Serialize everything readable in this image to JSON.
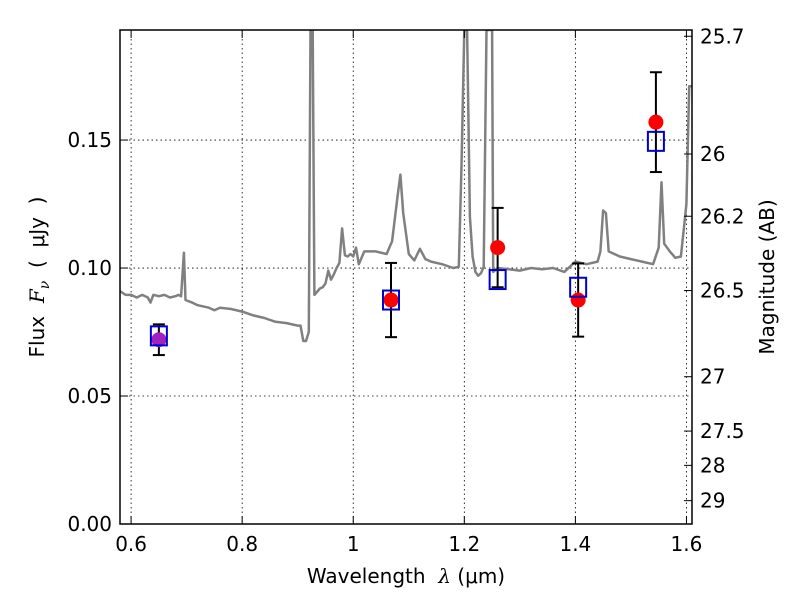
{
  "chart_data": {
    "type": "scatter",
    "xlabel": {
      "prefix": "Wavelength  ",
      "symbol": "λ",
      "unit": " (μm)"
    },
    "ylabel": {
      "prefix": "Flux  ",
      "symbol": "F",
      "subscript": "ν",
      "unit": "  (  μJy  )"
    },
    "y2label": "Magnitude (AB)",
    "xlim": [
      0.58,
      1.61
    ],
    "ylim": [
      0.0,
      0.193
    ],
    "grid": true,
    "x_ticks": [
      {
        "value": 0.6,
        "label": "0.6"
      },
      {
        "value": 0.8,
        "label": "0.8"
      },
      {
        "value": 1.0,
        "label": "1"
      },
      {
        "value": 1.2,
        "label": "1.2"
      },
      {
        "value": 1.4,
        "label": "1.4"
      },
      {
        "value": 1.6,
        "label": "1.6"
      }
    ],
    "y_ticks": [
      {
        "value": 0.0,
        "label": "0.00"
      },
      {
        "value": 0.05,
        "label": "0.05"
      },
      {
        "value": 0.1,
        "label": "0.10"
      },
      {
        "value": 0.15,
        "label": "0.15"
      }
    ],
    "mag_ticks": [
      {
        "value": 25.7,
        "label": "25.7"
      },
      {
        "value": 26.0,
        "label": "26"
      },
      {
        "value": 26.2,
        "label": "26.2"
      },
      {
        "value": 26.5,
        "label": "26.5"
      },
      {
        "value": 27.0,
        "label": "27"
      },
      {
        "value": 27.5,
        "label": "27.5"
      },
      {
        "value": 28.0,
        "label": "28"
      },
      {
        "value": 29.0,
        "label": "29"
      }
    ],
    "colors": {
      "spectrum": "#808080",
      "observed": "#ff0000",
      "model": "#0000cc",
      "errorbar": "#000000",
      "first_point": "#a020c0"
    },
    "observed": [
      {
        "x": 0.65,
        "y": 0.072,
        "err": 0.006
      },
      {
        "x": 1.068,
        "y": 0.0875,
        "err": 0.0145
      },
      {
        "x": 1.26,
        "y": 0.108,
        "err": 0.0155
      },
      {
        "x": 1.405,
        "y": 0.0875,
        "err": 0.0143
      },
      {
        "x": 1.545,
        "y": 0.157,
        "err": 0.0195
      }
    ],
    "model": [
      {
        "x": 0.65,
        "y": 0.0735
      },
      {
        "x": 1.068,
        "y": 0.0875
      },
      {
        "x": 1.26,
        "y": 0.0955
      },
      {
        "x": 1.405,
        "y": 0.0925
      },
      {
        "x": 1.545,
        "y": 0.1495
      }
    ],
    "spectrum": [
      [
        0.58,
        0.091
      ],
      [
        0.59,
        0.0895
      ],
      [
        0.6,
        0.0895
      ],
      [
        0.61,
        0.0885
      ],
      [
        0.62,
        0.0895
      ],
      [
        0.63,
        0.0885
      ],
      [
        0.635,
        0.0865
      ],
      [
        0.64,
        0.0895
      ],
      [
        0.65,
        0.089
      ],
      [
        0.66,
        0.0895
      ],
      [
        0.67,
        0.0885
      ],
      [
        0.68,
        0.089
      ],
      [
        0.685,
        0.0895
      ],
      [
        0.69,
        0.089
      ],
      [
        0.695,
        0.106
      ],
      [
        0.698,
        0.0875
      ],
      [
        0.71,
        0.0865
      ],
      [
        0.72,
        0.0855
      ],
      [
        0.74,
        0.0845
      ],
      [
        0.75,
        0.0835
      ],
      [
        0.76,
        0.0845
      ],
      [
        0.78,
        0.084
      ],
      [
        0.8,
        0.083
      ],
      [
        0.82,
        0.0815
      ],
      [
        0.84,
        0.0805
      ],
      [
        0.86,
        0.079
      ],
      [
        0.88,
        0.0785
      ],
      [
        0.9,
        0.0775
      ],
      [
        0.905,
        0.0775
      ],
      [
        0.91,
        0.0715
      ],
      [
        0.915,
        0.0715
      ],
      [
        0.92,
        0.075
      ],
      [
        0.923,
        0.193
      ],
      [
        0.927,
        0.193
      ],
      [
        0.93,
        0.0895
      ],
      [
        0.94,
        0.092
      ],
      [
        0.945,
        0.0925
      ],
      [
        0.95,
        0.094
      ],
      [
        0.955,
        0.099
      ],
      [
        0.96,
        0.0955
      ],
      [
        0.965,
        0.0975
      ],
      [
        0.97,
        0.1
      ],
      [
        0.975,
        0.102
      ],
      [
        0.98,
        0.1155
      ],
      [
        0.985,
        0.105
      ],
      [
        0.99,
        0.1045
      ],
      [
        0.995,
        0.1055
      ],
      [
        1.0,
        0.1045
      ],
      [
        1.005,
        0.108
      ],
      [
        1.01,
        0.1015
      ],
      [
        1.02,
        0.1065
      ],
      [
        1.04,
        0.1065
      ],
      [
        1.06,
        0.1055
      ],
      [
        1.07,
        0.1105
      ],
      [
        1.08,
        0.1285
      ],
      [
        1.085,
        0.1365
      ],
      [
        1.09,
        0.1215
      ],
      [
        1.1,
        0.1055
      ],
      [
        1.11,
        0.103
      ],
      [
        1.12,
        0.1075
      ],
      [
        1.13,
        0.1035
      ],
      [
        1.14,
        0.1025
      ],
      [
        1.16,
        0.1015
      ],
      [
        1.18,
        0.1
      ],
      [
        1.19,
        0.1005
      ],
      [
        1.195,
        0.14
      ],
      [
        1.2,
        0.193
      ],
      [
        1.205,
        0.193
      ],
      [
        1.21,
        0.12
      ],
      [
        1.215,
        0.1045
      ],
      [
        1.22,
        0.0985
      ],
      [
        1.225,
        0.097
      ],
      [
        1.23,
        0.098
      ],
      [
        1.235,
        0.1005
      ],
      [
        1.24,
        0.193
      ],
      [
        1.25,
        0.193
      ],
      [
        1.252,
        0.0985
      ],
      [
        1.26,
        0.1
      ],
      [
        1.28,
        0.0995
      ],
      [
        1.3,
        0.099
      ],
      [
        1.32,
        0.1
      ],
      [
        1.34,
        0.0995
      ],
      [
        1.36,
        0.1
      ],
      [
        1.38,
        0.0985
      ],
      [
        1.4,
        0.1025
      ],
      [
        1.42,
        0.1015
      ],
      [
        1.44,
        0.1025
      ],
      [
        1.445,
        0.1065
      ],
      [
        1.45,
        0.1225
      ],
      [
        1.455,
        0.1215
      ],
      [
        1.46,
        0.1065
      ],
      [
        1.48,
        0.1045
      ],
      [
        1.5,
        0.1035
      ],
      [
        1.52,
        0.1025
      ],
      [
        1.54,
        0.1015
      ],
      [
        1.55,
        0.108
      ],
      [
        1.555,
        0.1335
      ],
      [
        1.56,
        0.1095
      ],
      [
        1.57,
        0.1065
      ],
      [
        1.58,
        0.104
      ],
      [
        1.59,
        0.1045
      ],
      [
        1.6,
        0.125
      ],
      [
        1.605,
        0.171
      ],
      [
        1.61,
        0.171
      ]
    ]
  }
}
